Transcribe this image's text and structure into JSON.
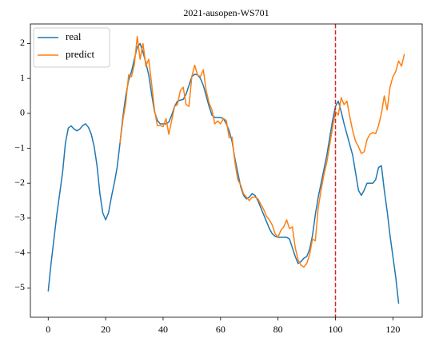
{
  "chart_data": {
    "type": "line",
    "title": "2021-ausopen-WS701",
    "x": [
      0,
      1,
      2,
      3,
      4,
      5,
      6,
      7,
      8,
      9,
      10,
      11,
      12,
      13,
      14,
      15,
      16,
      17,
      18,
      19,
      20,
      21,
      22,
      23,
      24,
      25,
      26,
      27,
      28,
      29,
      30,
      31,
      32,
      33,
      34,
      35,
      36,
      37,
      38,
      39,
      40,
      41,
      42,
      43,
      44,
      45,
      46,
      47,
      48,
      49,
      50,
      51,
      52,
      53,
      54,
      55,
      56,
      57,
      58,
      59,
      60,
      61,
      62,
      63,
      64,
      65,
      66,
      67,
      68,
      69,
      70,
      71,
      72,
      73,
      74,
      75,
      76,
      77,
      78,
      79,
      80,
      81,
      82,
      83,
      84,
      85,
      86,
      87,
      88,
      89,
      90,
      91,
      92,
      93,
      94,
      95,
      96,
      97,
      98,
      99,
      100,
      101,
      102,
      103,
      104,
      105,
      106,
      107,
      108,
      109,
      110,
      111,
      112,
      113,
      114,
      115,
      116,
      117,
      118,
      119,
      120,
      121,
      122,
      123,
      124
    ],
    "series": [
      {
        "name": "real",
        "color": "#1f77b4",
        "values": [
          -5.1,
          -4.3,
          -3.6,
          -2.9,
          -2.3,
          -1.7,
          -0.85,
          -0.42,
          -0.36,
          -0.45,
          -0.5,
          -0.45,
          -0.35,
          -0.3,
          -0.4,
          -0.6,
          -0.95,
          -1.5,
          -2.3,
          -2.85,
          -3.05,
          -2.85,
          -2.4,
          -2.0,
          -1.55,
          -0.85,
          -0.1,
          0.5,
          0.95,
          1.2,
          1.55,
          1.9,
          2.0,
          1.75,
          1.45,
          1.1,
          0.55,
          0.05,
          -0.2,
          -0.3,
          -0.3,
          -0.3,
          -0.25,
          -0.05,
          0.2,
          0.35,
          0.38,
          0.4,
          0.55,
          0.8,
          1.05,
          1.12,
          1.1,
          1.0,
          0.8,
          0.5,
          0.2,
          -0.05,
          -0.12,
          -0.12,
          -0.12,
          -0.15,
          -0.3,
          -0.5,
          -0.8,
          -1.3,
          -1.7,
          -2.1,
          -2.35,
          -2.45,
          -2.4,
          -2.3,
          -2.35,
          -2.5,
          -2.7,
          -2.9,
          -3.1,
          -3.3,
          -3.45,
          -3.52,
          -3.55,
          -3.55,
          -3.55,
          -3.55,
          -3.6,
          -3.85,
          -4.1,
          -4.3,
          -4.25,
          -4.15,
          -4.1,
          -3.9,
          -3.5,
          -2.9,
          -2.4,
          -2.0,
          -1.6,
          -1.2,
          -0.7,
          -0.2,
          0.2,
          0.35,
          0.05,
          -0.3,
          -0.6,
          -0.9,
          -1.2,
          -1.7,
          -2.2,
          -2.35,
          -2.2,
          -2.0,
          -2.0,
          -2.0,
          -1.9,
          -1.55,
          -1.5,
          -2.2,
          -2.8,
          -3.5,
          -4.1,
          -4.7,
          -5.45,
          null,
          null
        ]
      },
      {
        "name": "predict",
        "color": "#ff7f0e",
        "values": [
          null,
          null,
          null,
          null,
          null,
          null,
          null,
          null,
          null,
          null,
          null,
          null,
          null,
          null,
          null,
          null,
          null,
          null,
          null,
          null,
          null,
          null,
          null,
          null,
          null,
          -0.85,
          -0.2,
          0.3,
          1.1,
          1.05,
          1.4,
          2.2,
          1.55,
          2.0,
          1.35,
          1.55,
          0.85,
          0.1,
          -0.35,
          -0.35,
          -0.38,
          -0.15,
          -0.6,
          -0.2,
          0.2,
          0.25,
          0.65,
          0.75,
          0.25,
          0.2,
          1.05,
          1.38,
          1.1,
          1.05,
          1.25,
          0.65,
          0.3,
          0.1,
          -0.3,
          -0.22,
          -0.3,
          -0.15,
          -0.2,
          -0.7,
          -0.68,
          -1.4,
          -1.9,
          -2.05,
          -2.3,
          -2.4,
          -2.5,
          -2.4,
          -2.4,
          -2.45,
          -2.6,
          -2.75,
          -2.95,
          -3.05,
          -3.2,
          -3.45,
          -3.55,
          -3.35,
          -3.25,
          -3.05,
          -3.3,
          -3.25,
          -3.85,
          -4.2,
          -4.35,
          -4.4,
          -4.3,
          -4.05,
          -3.6,
          -3.65,
          -2.7,
          -2.2,
          -1.75,
          -1.4,
          -0.9,
          -0.4,
          0.05,
          -0.05,
          0.45,
          0.25,
          0.35,
          -0.1,
          -0.5,
          -0.8,
          -0.95,
          -1.15,
          -1.1,
          -0.75,
          -0.6,
          -0.55,
          -0.58,
          -0.35,
          0,
          0.5,
          0.1,
          0.75,
          1.05,
          1.2,
          1.5,
          1.35,
          1.7
        ]
      }
    ],
    "xlim": [
      -6.2,
      130.2
    ],
    "xticks": [
      0,
      20,
      40,
      60,
      80,
      100,
      120
    ],
    "ylim": [
      -5.84,
      2.56
    ],
    "yticks": [
      {
        "value": -5,
        "label": "−5"
      },
      {
        "value": -4,
        "label": "−4"
      },
      {
        "value": -3,
        "label": "−3"
      },
      {
        "value": -2,
        "label": "−2"
      },
      {
        "value": -1,
        "label": "−1"
      },
      0,
      1,
      2
    ],
    "vline": 100,
    "vline_color": "#d62728",
    "legend": "upper left"
  }
}
